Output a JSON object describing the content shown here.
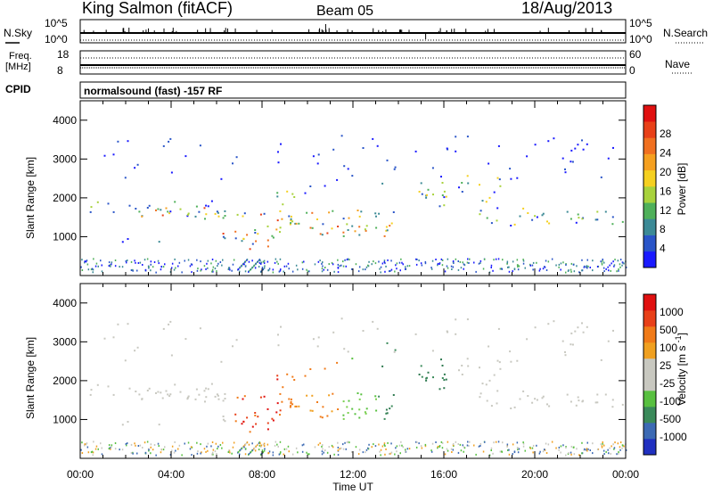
{
  "header": {
    "station": "King Salmon (fitACF)",
    "beam": "Beam 05",
    "date": "18/Aug/2013"
  },
  "top_panels": {
    "nsky_label": "N.Sky",
    "nsearch_label": "N.Search",
    "nsky_ticks": [
      "10^5",
      "10^0"
    ],
    "freq_label": "Freq.",
    "freq_unit": "[MHz]",
    "freq_ticks": [
      "18",
      "8"
    ],
    "nave_label": "Nave",
    "nave_ticks": [
      "60",
      "0"
    ],
    "cpid_label": "CPID",
    "cpid_text": "normalsound (fast) -157 RF"
  },
  "chart_data": [
    {
      "type": "heatmap",
      "name": "power",
      "ylabel": "Slant Range [km]",
      "xlabel": "Time UT",
      "xlim": [
        0,
        24
      ],
      "ylim": [
        0,
        4500
      ],
      "yticks": [
        "1000",
        "2000",
        "3000",
        "4000"
      ],
      "colorbar": {
        "label": "Power [dB]",
        "ticks": [
          "4",
          "8",
          "12",
          "16",
          "20",
          "24",
          "28"
        ],
        "colors": [
          "#1a1aff",
          "#2a55c8",
          "#3c8a96",
          "#4fb05a",
          "#a8d23c",
          "#f5d020",
          "#f5a020",
          "#f07020",
          "#e84018",
          "#e01010"
        ]
      }
    },
    {
      "type": "heatmap",
      "name": "velocity",
      "ylabel": "Slant Range [km]",
      "xlabel": "Time UT",
      "xlim": [
        0,
        24
      ],
      "ylim": [
        0,
        4500
      ],
      "yticks": [
        "1000",
        "2000",
        "3000",
        "4000"
      ],
      "xticks": [
        "00:00",
        "04:00",
        "08:00",
        "12:00",
        "16:00",
        "20:00",
        "00:00"
      ],
      "colorbar": {
        "label": "Velocity [m s^-1]",
        "ticks": [
          "1000",
          "500",
          "100",
          "25",
          "-25",
          "-100",
          "-500",
          "-1000"
        ],
        "colors": [
          "#2030c0",
          "#3c6ab4",
          "#3a8a5a",
          "#58c040",
          "#c8c8c0",
          "#c8c8c0",
          "#f0a020",
          "#f07a18",
          "#e84018",
          "#e01010"
        ]
      }
    }
  ]
}
